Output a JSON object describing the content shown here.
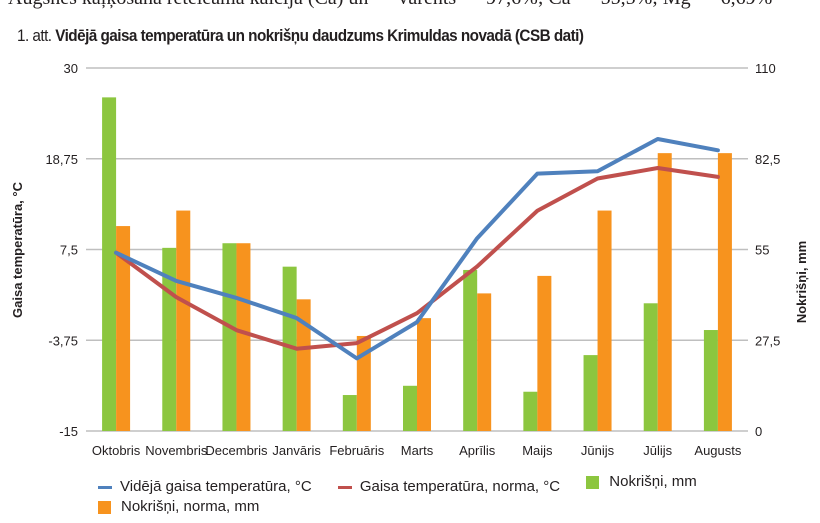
{
  "page": {
    "cut_text": "Augsnes kaļķošanā retelēamā kalcija (Ca) un — vārents — 97,6%; Ca — 55,5%; Mg — 6,69%",
    "caption_number": "1. att.",
    "caption_title": "Vidējā gaisa temperatūra un nokrišņu daudzums Krimuldas novadā (CSB dati)"
  },
  "colors": {
    "precip": "#8cc63f",
    "precip_norm": "#f7931e",
    "temp": "#4f81bd",
    "temp_norm": "#c0504d",
    "grid": "#bfbfbf"
  },
  "chart_data": {
    "type": "bar",
    "title": "Vidējā gaisa temperatūra un nokrišņu daudzums Krimuldas novadā (CSB dati)",
    "categories": [
      "Oktobris",
      "Novembris",
      "Decembris",
      "Janvāris",
      "Februāris",
      "Marts",
      "Aprīlis",
      "Maijs",
      "Jūnijs",
      "Jūlijs",
      "Augusts"
    ],
    "ylabel": "Gaisa temperatūra, °C",
    "ylabel_right": "Nokrišņi, mm",
    "ylim": [
      -15,
      30
    ],
    "ylim_right": [
      0,
      110
    ],
    "yticks": [
      "30",
      "18,75",
      "7,5",
      "-3,75",
      "-15"
    ],
    "yticks_right": [
      "110",
      "82,5",
      "55",
      "27,5",
      "0"
    ],
    "ytick_values": [
      30,
      18.75,
      7.5,
      -3.75,
      -15
    ],
    "ytick_right_values": [
      110,
      82.5,
      55,
      27.5,
      0
    ],
    "grid": true,
    "legend_position": "bottom",
    "series": [
      {
        "name": "Vidējā gaisa temperatūra, °C",
        "type": "line",
        "axis": "left",
        "color_key": "temp",
        "values": [
          7.1,
          3.6,
          1.5,
          -1.0,
          -6.0,
          -1.5,
          8.9,
          16.9,
          17.2,
          21.2,
          19.8
        ]
      },
      {
        "name": "Gaisa temperatūra, norma, °C",
        "type": "line",
        "axis": "left",
        "color_key": "temp_norm",
        "values": [
          7.1,
          1.6,
          -2.5,
          -4.8,
          -4.1,
          -0.4,
          5.4,
          12.3,
          16.3,
          17.6,
          16.5
        ]
      },
      {
        "name": "Nokrišņi, mm",
        "type": "bar",
        "axis": "right",
        "color_key": "precip",
        "values": [
          101.1,
          55.5,
          56.9,
          49.8,
          10.9,
          13.7,
          48.8,
          11.9,
          23.0,
          38.7,
          30.6
        ]
      },
      {
        "name": "Nokrišņi, norma, mm",
        "type": "bar",
        "axis": "right",
        "color_key": "precip_norm",
        "values": [
          62.1,
          66.8,
          56.9,
          39.9,
          28.8,
          34.2,
          41.7,
          47.0,
          66.8,
          84.2,
          84.2
        ]
      }
    ]
  }
}
